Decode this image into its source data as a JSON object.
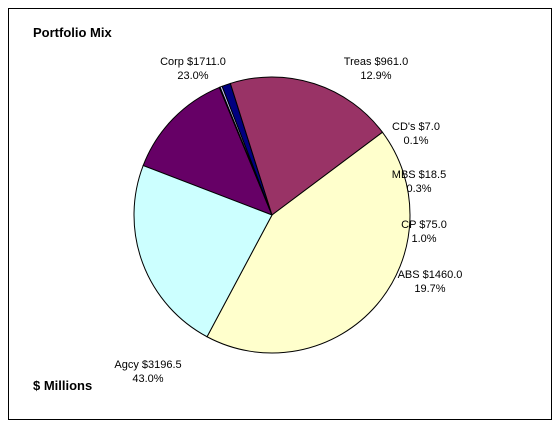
{
  "chart_data": {
    "type": "pie",
    "title": "Portfolio Mix",
    "note": "$ Millions",
    "slices": [
      {
        "name": "Treas",
        "label": "Treas $961.0",
        "value": 961.0,
        "percent": "12.9%",
        "color": "#660066"
      },
      {
        "name": "CD's",
        "label": "CD's $7.0",
        "value": 7.0,
        "percent": "0.1%",
        "color": "#ffffff"
      },
      {
        "name": "MBS",
        "label": "MBS $18.5",
        "value": 18.5,
        "percent": "0.3%",
        "color": "#ccccff"
      },
      {
        "name": "CP",
        "label": "CP $75.0",
        "value": 75.0,
        "percent": "1.0%",
        "color": "#000080"
      },
      {
        "name": "ABS",
        "label": "ABS $1460.0",
        "value": 1460.0,
        "percent": "19.7%",
        "color": "#993366"
      },
      {
        "name": "Agcy",
        "label": "Agcy $3196.5",
        "value": 3196.5,
        "percent": "43.0%",
        "color": "#ffffcc"
      },
      {
        "name": "Corp",
        "label": "Corp $1711.0",
        "value": 1711.0,
        "percent": "23.0%",
        "color": "#ccffff"
      }
    ]
  }
}
